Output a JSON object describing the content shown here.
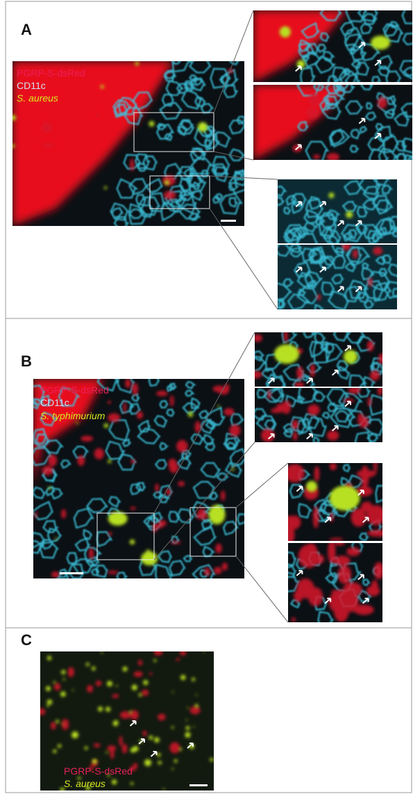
{
  "panels": [
    {
      "label": "A",
      "legend": [
        "PGRP-S-dsRed",
        "CD11c",
        "S. aureus"
      ]
    },
    {
      "label": "B",
      "legend": [
        "PGRP-S-dsRed",
        "CD11c",
        "S. typhimurium"
      ]
    },
    {
      "label": "C",
      "legend": [
        "PGRP-S-dsRed",
        "S. aureus"
      ]
    }
  ]
}
